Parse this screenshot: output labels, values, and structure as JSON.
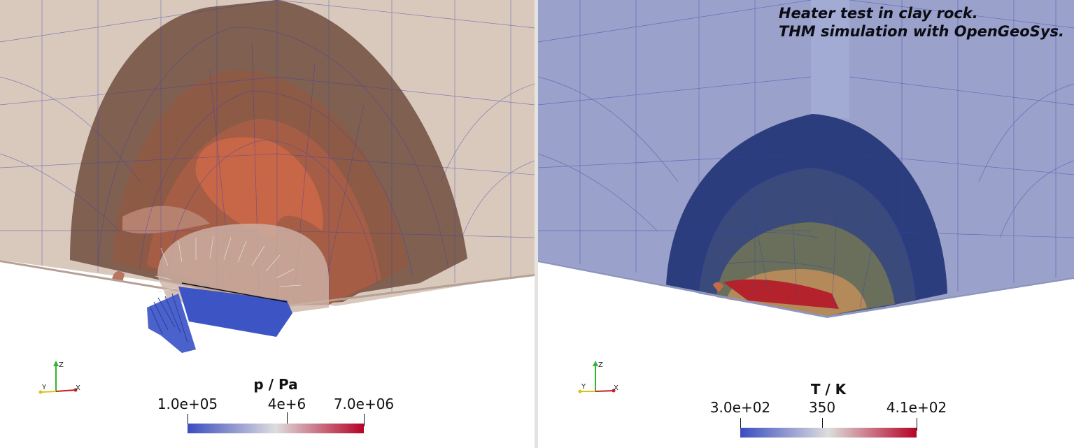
{
  "caption": {
    "line1": "Heater test in clay rock.",
    "line2": "THM simulation with OpenGeoSys."
  },
  "left_view": {
    "field": "pore pressure",
    "colorbar": {
      "title": "p / Pa",
      "min_label": "1.0e+05",
      "mid_label": "4e+6",
      "max_label": "7.0e+06",
      "colormap": "Cool to Warm",
      "colors": [
        "#3b4cc0",
        "#dddddd",
        "#b40426"
      ]
    },
    "axes": {
      "x": "X",
      "y": "Y",
      "z": "Z"
    }
  },
  "right_view": {
    "field": "temperature",
    "colorbar": {
      "title": "T / K",
      "min_label": "3.0e+02",
      "mid_label": "350",
      "max_label": "4.1e+02",
      "colormap": "Cool to Warm",
      "colors": [
        "#3b4cc0",
        "#dddddd",
        "#b40426"
      ]
    },
    "axes": {
      "x": "X",
      "y": "Y",
      "z": "Z"
    }
  },
  "colors": {
    "mesh_lines": "#3a3fa8",
    "background": "#ffffff",
    "splitter": "#e4e3df"
  }
}
